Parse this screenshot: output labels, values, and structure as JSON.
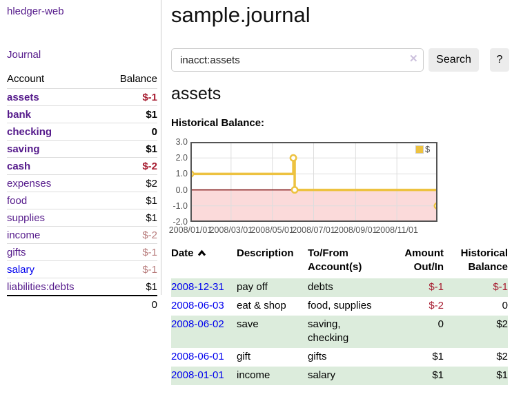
{
  "app": {
    "brand": "hledger-web",
    "nav_journal": "Journal"
  },
  "colors": {
    "link_visited": "#551a8b",
    "link_new": "#0000ee",
    "neg_strong": "#a71d31",
    "neg_muted": "#b87c7c",
    "row_stripe": "#dcecdc",
    "chart_series": "#edc240",
    "chart_neg_region": "#fbdada",
    "chart_zero_line": "#7e1010",
    "chart_grid": "#dddddd",
    "chart_border": "#545454",
    "chart_text": "#545454"
  },
  "sidebar": {
    "headers": [
      "Account",
      "Balance"
    ],
    "rows": [
      {
        "account": "assets",
        "balance": "$-1",
        "depth": 0,
        "bold": true,
        "new_link": false,
        "balance_style": "neg_strong"
      },
      {
        "account": "bank",
        "balance": "$1",
        "depth": 1,
        "bold": true,
        "new_link": false,
        "balance_style": "normal"
      },
      {
        "account": "checking",
        "balance": "0",
        "depth": 2,
        "bold": true,
        "new_link": false,
        "balance_style": "normal"
      },
      {
        "account": "saving",
        "balance": "$1",
        "depth": 2,
        "bold": true,
        "new_link": false,
        "balance_style": "normal"
      },
      {
        "account": "cash",
        "balance": "$-2",
        "depth": 1,
        "bold": true,
        "new_link": false,
        "balance_style": "neg_strong"
      },
      {
        "account": "expenses",
        "balance": "$2",
        "depth": 0,
        "bold": false,
        "new_link": false,
        "balance_style": "normal"
      },
      {
        "account": "food",
        "balance": "$1",
        "depth": 1,
        "bold": false,
        "new_link": false,
        "balance_style": "normal"
      },
      {
        "account": "supplies",
        "balance": "$1",
        "depth": 1,
        "bold": false,
        "new_link": false,
        "balance_style": "normal"
      },
      {
        "account": "income",
        "balance": "$-2",
        "depth": 0,
        "bold": false,
        "new_link": false,
        "balance_style": "neg_muted"
      },
      {
        "account": "gifts",
        "balance": "$-1",
        "depth": 1,
        "bold": false,
        "new_link": false,
        "balance_style": "neg_muted"
      },
      {
        "account": "salary",
        "balance": "$-1",
        "depth": 1,
        "bold": false,
        "new_link": true,
        "balance_style": "neg_muted"
      },
      {
        "account": "liabilities:debts",
        "balance": "$1",
        "depth": 0,
        "bold": false,
        "new_link": false,
        "balance_style": "normal"
      }
    ],
    "total": "0"
  },
  "main": {
    "title": "sample.journal",
    "search": {
      "value": "inacct:assets",
      "clear_icon": "✕",
      "button_label": "Search",
      "help_label": "?"
    },
    "account_heading": "assets",
    "chart_label": "Historical Balance:"
  },
  "chart_data": {
    "type": "line",
    "step": true,
    "title": "Historical Balance of assets",
    "xlim": [
      "2008-01-01",
      "2008-12-31"
    ],
    "ylim": [
      -2,
      3
    ],
    "grid": true,
    "negative_region": true,
    "legend_position": "top-right",
    "y_ticks": [
      "3.0",
      "2.0",
      "1.0",
      "0.0",
      "-1.0",
      "-2.0"
    ],
    "x_ticks": [
      {
        "date": "2008-01-01",
        "label": "2008/01/01"
      },
      {
        "date": "2008-03-01",
        "label": "2008/03/01"
      },
      {
        "date": "2008-05-01",
        "label": "2008/05/01"
      },
      {
        "date": "2008-07-01",
        "label": "2008/07/01"
      },
      {
        "date": "2008-09-01",
        "label": "2008/09/01"
      },
      {
        "date": "2008-11-01",
        "label": "2008/11/01"
      }
    ],
    "legend": [
      {
        "label": "$",
        "color": "#edc240"
      }
    ],
    "series": [
      {
        "name": "$",
        "color": "#edc240",
        "points": [
          {
            "date": "2008-01-01",
            "value": 1
          },
          {
            "date": "2008-06-01",
            "value": 2
          },
          {
            "date": "2008-06-03",
            "value": 0
          },
          {
            "date": "2008-12-31",
            "value": -1
          }
        ]
      }
    ]
  },
  "register": {
    "headers": [
      "Date",
      "Description",
      "To/From Account(s)",
      "Amount Out/In",
      "Historical Balance"
    ],
    "sort_column": "Date",
    "sort_direction": "ascending",
    "rows": [
      {
        "date": "2008-12-31",
        "description": "pay off",
        "accounts": "debts",
        "amount": "$-1",
        "amount_neg": true,
        "balance": "$-1",
        "balance_neg": true
      },
      {
        "date": "2008-06-03",
        "description": "eat & shop",
        "accounts": "food, supplies",
        "amount": "$-2",
        "amount_neg": true,
        "balance": "0",
        "balance_neg": false
      },
      {
        "date": "2008-06-02",
        "description": "save",
        "accounts": "saving,\nchecking",
        "amount": "0",
        "amount_neg": false,
        "balance": "$2",
        "balance_neg": false
      },
      {
        "date": "2008-06-01",
        "description": "gift",
        "accounts": "gifts",
        "amount": "$1",
        "amount_neg": false,
        "balance": "$2",
        "balance_neg": false
      },
      {
        "date": "2008-01-01",
        "description": "income",
        "accounts": "salary",
        "amount": "$1",
        "amount_neg": false,
        "balance": "$1",
        "balance_neg": false
      }
    ]
  }
}
